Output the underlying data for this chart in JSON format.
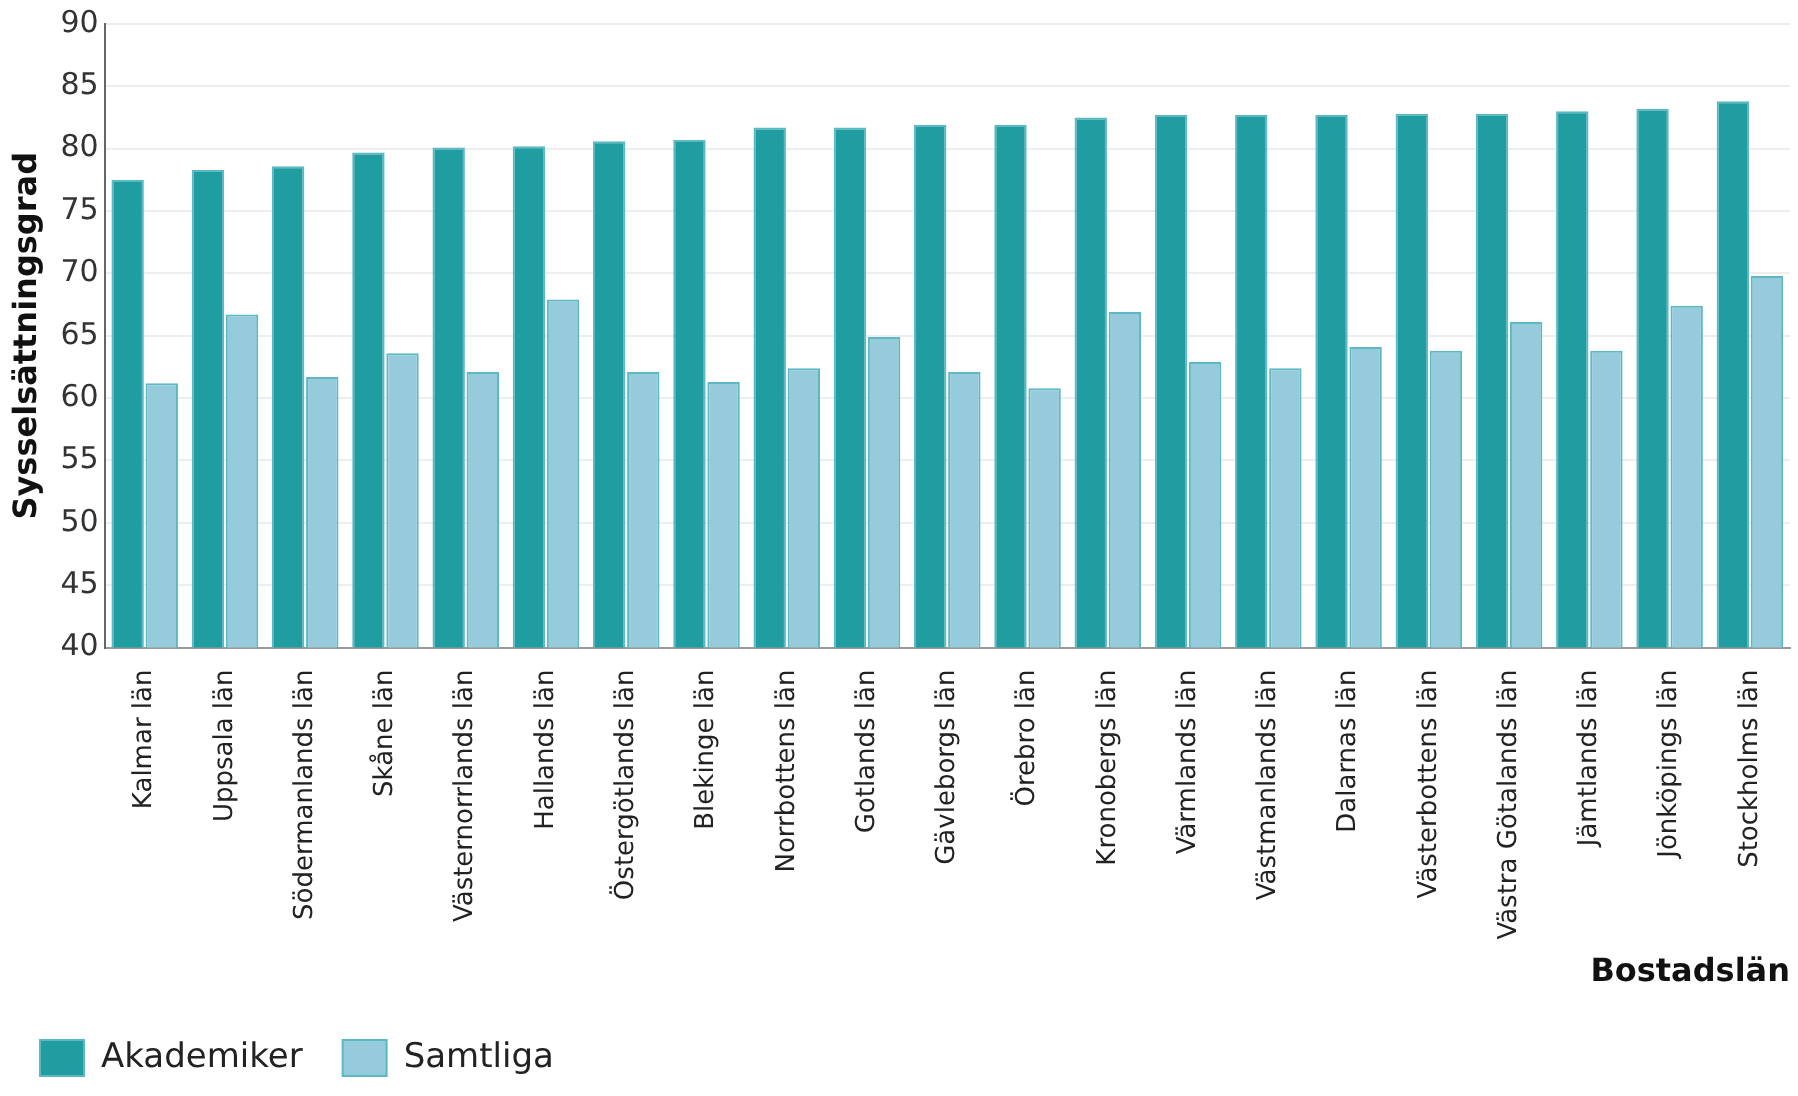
{
  "chart_data": {
    "type": "bar",
    "ylabel": "Sysselsättningsgrad",
    "xlabel": "Bostadslän",
    "categories": [
      "Kalmar län",
      "Uppsala län",
      "Södermanlands län",
      "Skåne län",
      "Västernorrlands län",
      "Hallands län",
      "Östergötlands län",
      "Blekinge län",
      "Norrbottens län",
      "Gotlands län",
      "Gävleborgs län",
      "Örebro län",
      "Kronobergs län",
      "Värmlands län",
      "Västmanlands län",
      "Dalarnas län",
      "Västerbottens län",
      "Västra Götalands län",
      "Jämtlands län",
      "Jönköpings län",
      "Stockholms län"
    ],
    "series": [
      {
        "name": "Akademiker",
        "color": "#1f9da1",
        "values": [
          77.5,
          78.3,
          78.6,
          79.7,
          80.1,
          80.2,
          80.6,
          80.7,
          81.7,
          81.7,
          81.9,
          81.9,
          82.5,
          82.7,
          82.7,
          82.7,
          82.8,
          82.8,
          83.0,
          83.2,
          83.8
        ]
      },
      {
        "name": "Samtliga",
        "color": "#96cbdb",
        "values": [
          61.2,
          66.7,
          61.7,
          63.6,
          62.1,
          67.9,
          62.1,
          61.3,
          62.4,
          64.9,
          62.1,
          60.8,
          66.9,
          62.9,
          62.4,
          64.1,
          63.8,
          66.1,
          63.8,
          67.4,
          69.8
        ]
      }
    ],
    "ylim": [
      40,
      90
    ],
    "yticks": [
      40,
      45,
      50,
      55,
      60,
      65,
      70,
      75,
      80,
      85,
      90
    ],
    "grid": "y",
    "legend": "bottom"
  }
}
